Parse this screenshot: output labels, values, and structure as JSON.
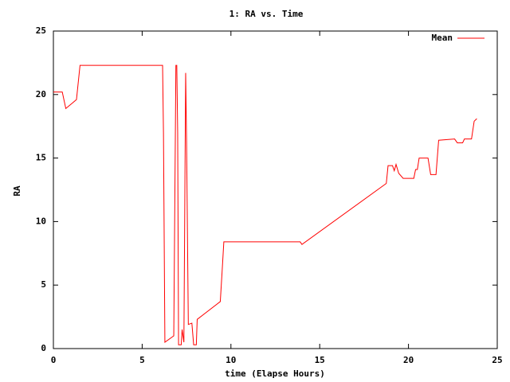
{
  "chart_data": {
    "type": "line",
    "title": "1: RA vs. Time",
    "x_label": "time (Elapse Hours)",
    "y_label": "RA",
    "x": [
      0,
      0.5,
      0.7,
      1.3,
      1.5,
      6.15,
      6.2,
      6.28,
      6.78,
      6.9,
      6.95,
      7.0,
      7.05,
      7.2,
      7.25,
      7.35,
      7.45,
      7.5,
      7.6,
      7.8,
      7.9,
      8.05,
      8.1,
      9.4,
      9.5,
      9.6,
      13.9,
      14.0,
      18.75,
      18.85,
      19.1,
      19.2,
      19.3,
      19.45,
      19.7,
      20.3,
      20.4,
      20.5,
      20.6,
      21.1,
      21.25,
      21.55,
      21.7,
      22.6,
      22.75,
      23.05,
      23.15,
      23.55,
      23.7,
      23.85
    ],
    "series": [
      {
        "name": "Mean",
        "color": "#ff0000",
        "values": [
          20.2,
          20.2,
          18.9,
          19.6,
          22.3,
          22.3,
          17,
          0.5,
          1,
          22.3,
          22.3,
          17,
          0.3,
          0.3,
          1.5,
          0.5,
          21.7,
          16.5,
          1.9,
          2.0,
          0.3,
          0.3,
          2.3,
          3.7,
          6,
          8.4,
          8.4,
          8.2,
          13,
          14.4,
          14.4,
          14.0,
          14.5,
          13.8,
          13.4,
          13.4,
          14.1,
          14.1,
          15.0,
          15.0,
          13.7,
          13.7,
          16.4,
          16.5,
          16.2,
          16.2,
          16.5,
          16.5,
          17.9,
          18.1
        ]
      }
    ],
    "xlim": [
      0,
      25
    ],
    "xticks": [
      0,
      5,
      10,
      15,
      20,
      25
    ],
    "ylim": [
      0,
      25
    ],
    "yticks": [
      0,
      5,
      10,
      15,
      20,
      25
    ],
    "legend": "top-right"
  }
}
